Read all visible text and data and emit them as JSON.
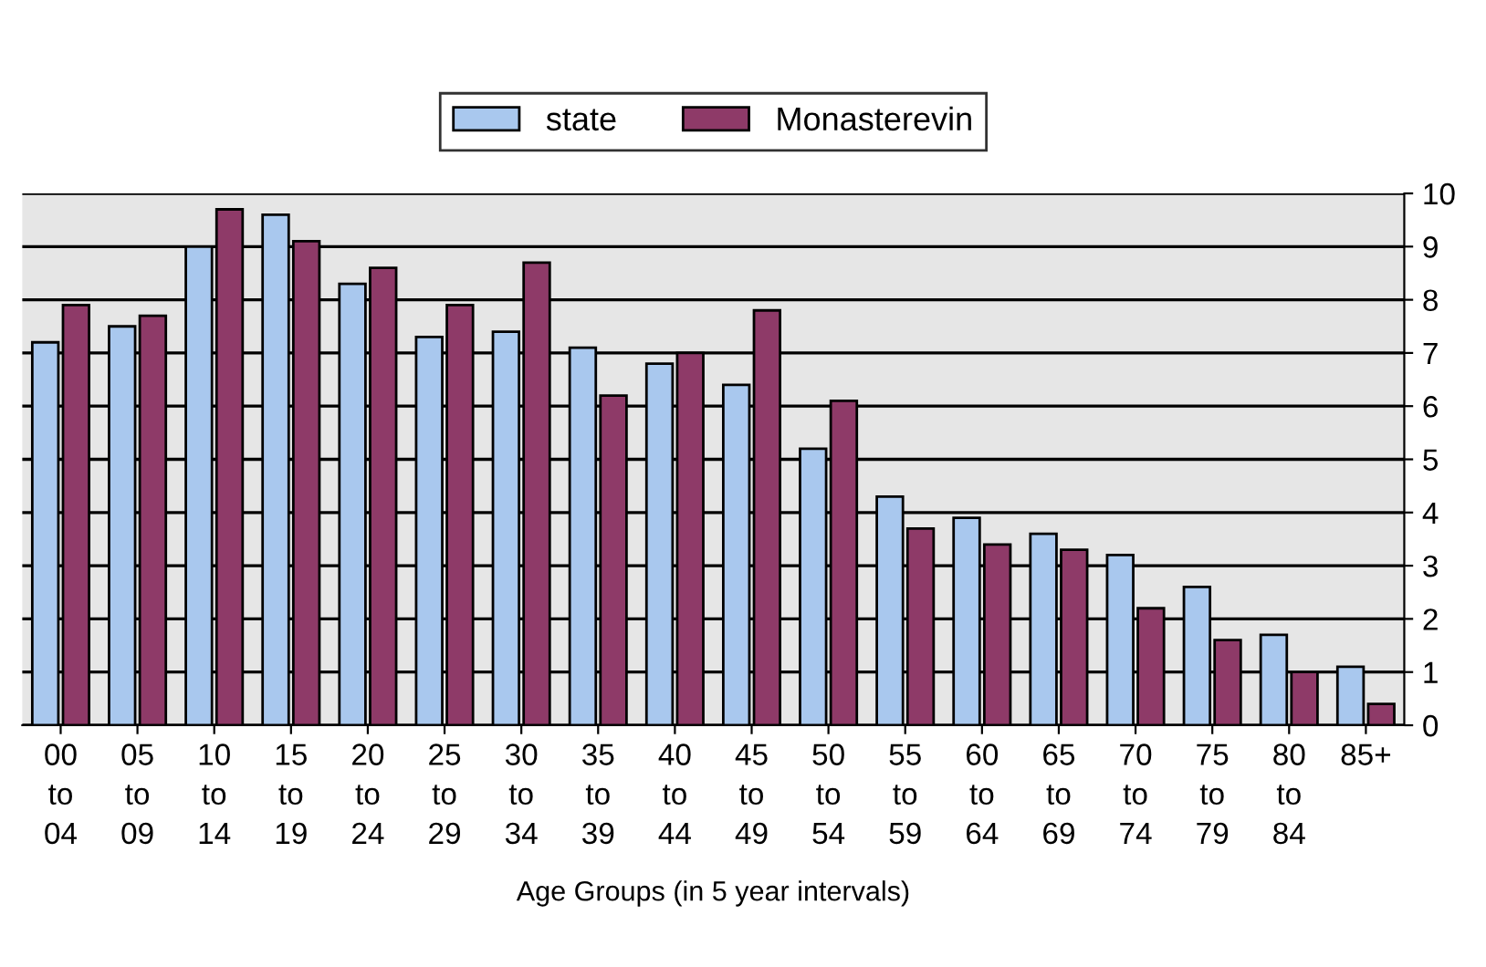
{
  "chart_data": {
    "type": "bar",
    "xlabel": "Age Groups (in 5 year intervals)",
    "categories": [
      "00\nto\n04",
      "05\nto\n09",
      "10\nto\n14",
      "15\nto\n19",
      "20\nto\n24",
      "25\nto\n29",
      "30\nto\n34",
      "35\nto\n39",
      "40\nto\n44",
      "45\nto\n49",
      "50\nto\n54",
      "55\nto\n59",
      "60\nto\n64",
      "65\nto\n69",
      "70\nto\n74",
      "75\nto\n79",
      "80\nto\n84",
      "85+"
    ],
    "series": [
      {
        "name": "state",
        "color": "#a9c8ee",
        "values": [
          7.2,
          7.5,
          9.0,
          9.6,
          8.3,
          7.3,
          7.4,
          7.1,
          6.8,
          6.4,
          5.2,
          4.3,
          3.9,
          3.6,
          3.2,
          2.6,
          1.7,
          1.1
        ]
      },
      {
        "name": "Monasterevin",
        "color": "#8e3a68",
        "values": [
          7.9,
          7.7,
          9.7,
          9.1,
          8.6,
          7.9,
          8.7,
          6.2,
          7.0,
          7.8,
          6.1,
          3.7,
          3.4,
          3.3,
          2.2,
          1.6,
          1.0,
          0.4
        ]
      }
    ],
    "ylim": [
      0,
      10
    ],
    "yticks": [
      0,
      1,
      2,
      3,
      4,
      5,
      6,
      7,
      8,
      9,
      10
    ],
    "grid": "y",
    "legend": "top"
  }
}
